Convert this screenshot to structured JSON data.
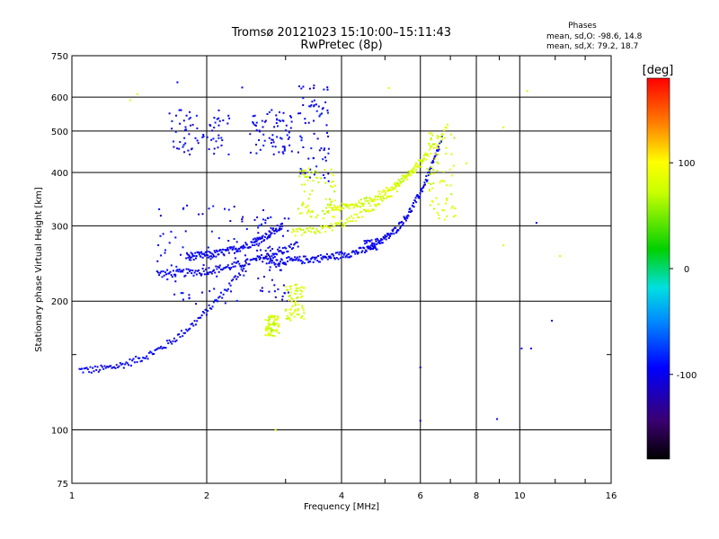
{
  "chart_data": {
    "type": "scatter",
    "title": "Tromsø 20121023 15:10:00–15:11:43",
    "subtitle": "RwPretec (8p)",
    "xlabel": "Frequency [MHz]",
    "ylabel": "Stationary phase Virtual Height [km]",
    "x_scale": "log",
    "y_scale": "log",
    "xlim": [
      1,
      16
    ],
    "ylim": [
      75,
      750
    ],
    "x_ticks": [
      1,
      2,
      4,
      6,
      8,
      10,
      16
    ],
    "x_tick_labels": [
      "1",
      "2",
      "4",
      "6",
      "8",
      "10",
      "16"
    ],
    "x_minor_ticks": [
      3,
      5,
      7,
      9,
      12,
      14
    ],
    "y_ticks": [
      75,
      100,
      200,
      300,
      400,
      500,
      600,
      750
    ],
    "y_tick_labels": [
      "75",
      "100",
      "200",
      "300",
      "400",
      "500",
      "600",
      "750"
    ],
    "y_minor_ticks": [
      150
    ],
    "grid": true,
    "stats": {
      "heading": "Phases",
      "o_line": "mean, sd,O: -98.6, 14.8",
      "x_line": "mean, sd,X:  79.2, 18.7"
    },
    "colorbar": {
      "label": "[deg]",
      "range": [
        -180,
        180
      ],
      "ticks": [
        100,
        0,
        -100
      ],
      "tick_labels": [
        "100",
        "0",
        "-100"
      ]
    },
    "series": [
      {
        "name": "O",
        "color_phase": -98.6,
        "traces": [
          {
            "f0": 1.04,
            "f1": 2.45,
            "h0": 138,
            "h1": 245
          },
          {
            "f0": 1.55,
            "f1": 3.2,
            "h0": 232,
            "h1": 272
          },
          {
            "f0": 1.8,
            "f1": 2.95,
            "h0": 255,
            "h1": 300
          },
          {
            "f0": 2.7,
            "f1": 4.8,
            "h0": 248,
            "h1": 268
          },
          {
            "f0": 4.5,
            "f1": 6.7,
            "h0": 272,
            "h1": 480
          }
        ],
        "clusters": [
          {
            "f": [
              1.65,
              2.25
            ],
            "h": [
              440,
              560
            ]
          },
          {
            "f": [
              1.55,
              2.5
            ],
            "h": [
              195,
              340
            ]
          },
          {
            "f": [
              2.55,
              3.05
            ],
            "h": [
              200,
              330
            ]
          },
          {
            "f": [
              2.5,
              3.1
            ],
            "h": [
              440,
              560
            ]
          },
          {
            "f": [
              3.2,
              3.75
            ],
            "h": [
              380,
              640
            ]
          }
        ],
        "isolated_points": [
          {
            "f": 1.72,
            "h": 650
          },
          {
            "f": 2.4,
            "h": 632
          },
          {
            "f": 6.0,
            "h": 105
          },
          {
            "f": 6.0,
            "h": 140
          },
          {
            "f": 8.9,
            "h": 106
          },
          {
            "f": 10.1,
            "h": 155
          },
          {
            "f": 10.6,
            "h": 155
          },
          {
            "f": 10.9,
            "h": 305
          },
          {
            "f": 11.8,
            "h": 180
          }
        ]
      },
      {
        "name": "X",
        "color_phase": 79.2,
        "traces": [
          {
            "f0": 3.1,
            "f1": 6.9,
            "h0": 290,
            "h1": 510
          },
          {
            "f0": 3.7,
            "f1": 6.2,
            "h0": 330,
            "h1": 440
          }
        ],
        "clusters": [
          {
            "f": [
              3.2,
              3.9
            ],
            "h": [
              310,
              410
            ]
          },
          {
            "f": [
              2.7,
              2.9
            ],
            "h": [
              165,
              185
            ]
          },
          {
            "f": [
              3.0,
              3.3
            ],
            "h": [
              180,
              220
            ]
          },
          {
            "f": [
              6.2,
              7.2
            ],
            "h": [
              310,
              500
            ]
          }
        ],
        "isolated_points": [
          {
            "f": 1.35,
            "h": 590
          },
          {
            "f": 1.4,
            "h": 610
          },
          {
            "f": 2.85,
            "h": 100
          },
          {
            "f": 5.1,
            "h": 630
          },
          {
            "f": 7.6,
            "h": 420
          },
          {
            "f": 9.2,
            "h": 510
          },
          {
            "f": 9.2,
            "h": 270
          },
          {
            "f": 10.4,
            "h": 620
          },
          {
            "f": 12.3,
            "h": 255
          }
        ]
      }
    ]
  }
}
